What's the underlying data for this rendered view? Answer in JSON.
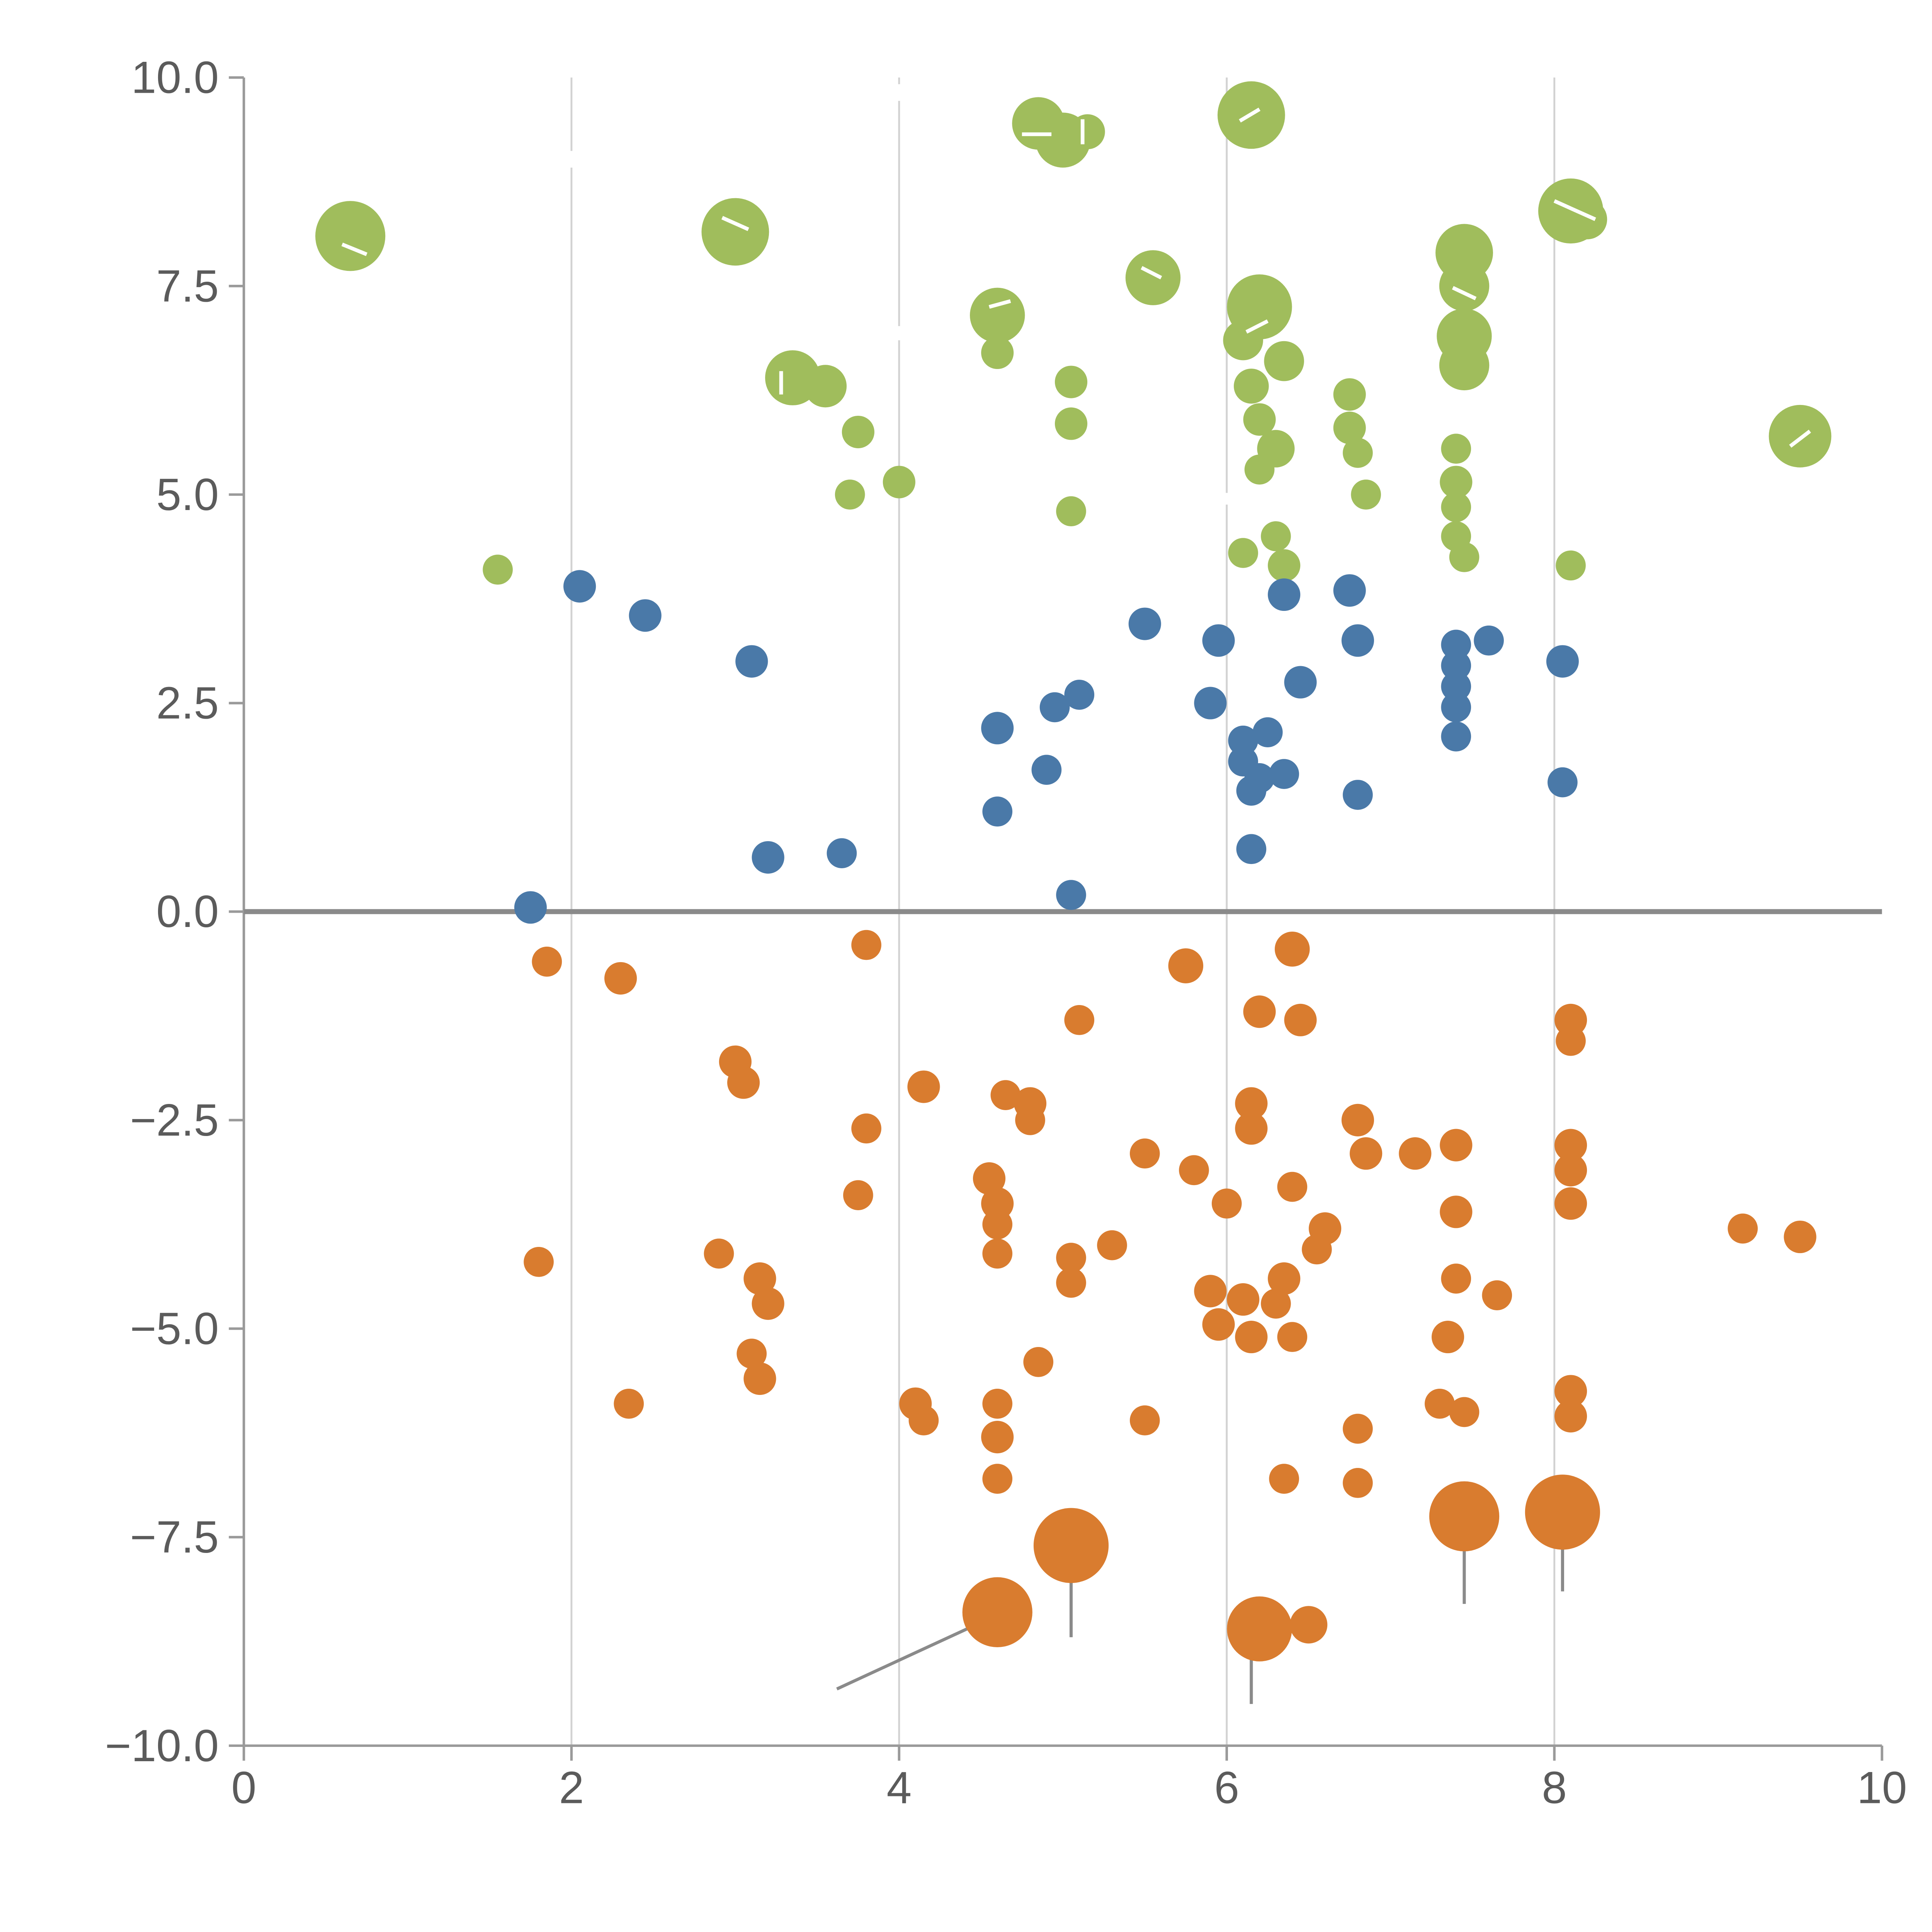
{
  "chart_data": {
    "type": "scatter",
    "title": "",
    "xlabel": "",
    "ylabel": "",
    "xlim": [
      0,
      10
    ],
    "ylim": [
      -10,
      10
    ],
    "x_ticks": [
      0,
      2,
      4,
      6,
      8,
      10
    ],
    "y_ticks": [
      10.0,
      7.5,
      5.0,
      2.5,
      0.0,
      -2.5,
      -5.0,
      -7.5,
      -10.0
    ],
    "x_tick_labels": [
      "0",
      "2",
      "4",
      "6",
      "8",
      "10"
    ],
    "y_tick_labels": [
      "10.0",
      "7.5",
      "5.0",
      "2.5",
      "0.0",
      "−2.5",
      "−5.0",
      "−7.5",
      "−10.0"
    ],
    "grid": "vertical-only",
    "grid_x_values": [
      2,
      4,
      6,
      8
    ],
    "zero_line": true,
    "legend": "none",
    "colors": {
      "green": "#a0bd5c",
      "blue": "#4a79a8",
      "orange": "#d97c2f",
      "grid": "#d2d2d2",
      "zero_line": "#8a8a8a",
      "axis": "#9a9a9a",
      "tick_label": "#5b5b5b",
      "rule_gray": "#8a8a8a",
      "rule_white": "#ffffff"
    },
    "series": [
      {
        "name": "green",
        "color": "#a0bd5c",
        "points": [
          [
            0.65,
            8.1,
            28
          ],
          [
            3.0,
            8.15,
            27
          ],
          [
            4.85,
            9.45,
            21
          ],
          [
            5.0,
            9.25,
            22
          ],
          [
            5.15,
            9.35,
            14
          ],
          [
            6.15,
            9.55,
            27
          ],
          [
            8.1,
            8.4,
            26
          ],
          [
            8.2,
            8.3,
            16
          ],
          [
            5.55,
            7.6,
            22
          ],
          [
            4.6,
            7.15,
            22
          ],
          [
            4.6,
            6.7,
            13
          ],
          [
            6.2,
            7.25,
            26
          ],
          [
            6.1,
            6.85,
            16
          ],
          [
            7.45,
            7.9,
            23
          ],
          [
            7.45,
            7.5,
            20
          ],
          [
            7.45,
            6.9,
            22
          ],
          [
            7.45,
            6.55,
            20
          ],
          [
            3.35,
            6.4,
            22
          ],
          [
            3.55,
            6.3,
            17
          ],
          [
            5.05,
            6.35,
            13
          ],
          [
            5.05,
            5.85,
            13
          ],
          [
            3.75,
            5.75,
            13
          ],
          [
            6.35,
            6.6,
            16
          ],
          [
            6.15,
            6.3,
            14
          ],
          [
            6.2,
            5.9,
            13
          ],
          [
            6.3,
            5.55,
            15
          ],
          [
            6.75,
            6.2,
            13
          ],
          [
            6.75,
            5.8,
            13
          ],
          [
            6.8,
            5.5,
            12
          ],
          [
            3.7,
            5.0,
            12
          ],
          [
            4.0,
            5.15,
            13
          ],
          [
            5.05,
            4.8,
            12
          ],
          [
            6.2,
            5.3,
            12
          ],
          [
            7.4,
            5.55,
            12
          ],
          [
            7.4,
            5.15,
            13
          ],
          [
            7.4,
            4.85,
            12
          ],
          [
            6.85,
            5.0,
            12
          ],
          [
            9.5,
            5.7,
            25
          ],
          [
            1.55,
            4.1,
            12
          ],
          [
            6.3,
            4.5,
            12
          ],
          [
            6.35,
            4.15,
            13
          ],
          [
            6.1,
            4.3,
            12
          ],
          [
            7.4,
            4.5,
            12
          ],
          [
            7.45,
            4.25,
            12
          ],
          [
            8.1,
            4.15,
            12
          ]
        ]
      },
      {
        "name": "blue",
        "color": "#4a79a8",
        "points": [
          [
            2.05,
            3.9,
            13
          ],
          [
            2.45,
            3.55,
            13
          ],
          [
            3.1,
            3.0,
            13
          ],
          [
            3.2,
            0.65,
            13
          ],
          [
            3.65,
            0.7,
            12
          ],
          [
            1.75,
            0.05,
            13
          ],
          [
            4.6,
            2.2,
            13
          ],
          [
            4.6,
            1.2,
            12
          ],
          [
            4.9,
            1.7,
            12
          ],
          [
            4.95,
            2.45,
            12
          ],
          [
            5.1,
            2.6,
            12
          ],
          [
            5.05,
            0.2,
            12
          ],
          [
            5.5,
            3.45,
            13
          ],
          [
            5.95,
            3.25,
            13
          ],
          [
            5.9,
            2.5,
            13
          ],
          [
            6.35,
            3.8,
            13
          ],
          [
            6.75,
            3.85,
            13
          ],
          [
            6.45,
            2.75,
            13
          ],
          [
            6.1,
            2.05,
            12
          ],
          [
            6.25,
            2.15,
            12
          ],
          [
            6.1,
            1.8,
            12
          ],
          [
            6.2,
            1.6,
            12
          ],
          [
            6.35,
            1.65,
            12
          ],
          [
            6.15,
            1.45,
            12
          ],
          [
            6.15,
            0.75,
            12
          ],
          [
            6.8,
            3.25,
            13
          ],
          [
            6.8,
            1.4,
            12
          ],
          [
            7.4,
            3.2,
            12
          ],
          [
            7.6,
            3.25,
            12
          ],
          [
            7.4,
            2.95,
            12
          ],
          [
            7.4,
            2.7,
            12
          ],
          [
            7.4,
            2.45,
            12
          ],
          [
            7.4,
            2.1,
            12
          ],
          [
            8.05,
            3.0,
            13
          ],
          [
            8.05,
            1.55,
            12
          ]
        ]
      },
      {
        "name": "orange",
        "color": "#d97c2f",
        "points": [
          [
            1.85,
            -0.6,
            12
          ],
          [
            2.3,
            -0.8,
            13
          ],
          [
            3.8,
            -0.4,
            12
          ],
          [
            5.75,
            -0.65,
            14
          ],
          [
            6.4,
            -0.45,
            14
          ],
          [
            5.1,
            -1.3,
            12
          ],
          [
            6.2,
            -1.2,
            13
          ],
          [
            6.45,
            -1.3,
            13
          ],
          [
            8.1,
            -1.3,
            13
          ],
          [
            8.1,
            -1.55,
            12
          ],
          [
            3.0,
            -1.8,
            13
          ],
          [
            3.05,
            -2.05,
            13
          ],
          [
            4.15,
            -2.1,
            13
          ],
          [
            4.65,
            -2.2,
            12
          ],
          [
            4.8,
            -2.3,
            13
          ],
          [
            4.8,
            -2.5,
            12
          ],
          [
            3.8,
            -2.6,
            12
          ],
          [
            6.15,
            -2.3,
            13
          ],
          [
            6.15,
            -2.6,
            13
          ],
          [
            6.8,
            -2.5,
            13
          ],
          [
            6.85,
            -2.9,
            13
          ],
          [
            7.15,
            -2.9,
            13
          ],
          [
            7.4,
            -2.8,
            13
          ],
          [
            8.1,
            -2.8,
            13
          ],
          [
            8.1,
            -3.1,
            13
          ],
          [
            5.5,
            -2.9,
            12
          ],
          [
            5.8,
            -3.1,
            12
          ],
          [
            4.55,
            -3.2,
            13
          ],
          [
            4.6,
            -3.5,
            13
          ],
          [
            4.6,
            -3.75,
            12
          ],
          [
            3.75,
            -3.4,
            12
          ],
          [
            6.0,
            -3.5,
            12
          ],
          [
            6.4,
            -3.3,
            12
          ],
          [
            6.6,
            -3.8,
            13
          ],
          [
            6.55,
            -4.05,
            12
          ],
          [
            7.4,
            -3.6,
            13
          ],
          [
            8.1,
            -3.5,
            13
          ],
          [
            9.15,
            -3.8,
            12
          ],
          [
            9.5,
            -3.9,
            13
          ],
          [
            1.8,
            -4.2,
            12
          ],
          [
            2.9,
            -4.1,
            12
          ],
          [
            4.6,
            -4.1,
            12
          ],
          [
            5.05,
            -4.15,
            12
          ],
          [
            5.05,
            -4.45,
            12
          ],
          [
            5.3,
            -4.0,
            12
          ],
          [
            3.15,
            -4.4,
            13
          ],
          [
            3.2,
            -4.7,
            13
          ],
          [
            5.9,
            -4.55,
            13
          ],
          [
            6.1,
            -4.65,
            13
          ],
          [
            6.35,
            -4.4,
            13
          ],
          [
            6.3,
            -4.7,
            12
          ],
          [
            5.95,
            -4.95,
            13
          ],
          [
            6.15,
            -5.1,
            13
          ],
          [
            6.4,
            -5.1,
            12
          ],
          [
            7.4,
            -4.4,
            12
          ],
          [
            7.65,
            -4.6,
            12
          ],
          [
            7.35,
            -5.1,
            13
          ],
          [
            3.1,
            -5.3,
            12
          ],
          [
            3.15,
            -5.6,
            13
          ],
          [
            4.85,
            -5.4,
            12
          ],
          [
            2.35,
            -5.9,
            12
          ],
          [
            4.1,
            -5.9,
            13
          ],
          [
            4.15,
            -6.1,
            12
          ],
          [
            4.6,
            -5.9,
            12
          ],
          [
            4.6,
            -6.3,
            13
          ],
          [
            5.5,
            -6.1,
            12
          ],
          [
            7.3,
            -5.9,
            12
          ],
          [
            7.45,
            -6.0,
            12
          ],
          [
            8.1,
            -5.75,
            13
          ],
          [
            8.1,
            -6.05,
            13
          ],
          [
            6.35,
            -6.8,
            12
          ],
          [
            6.8,
            -6.2,
            12
          ],
          [
            6.8,
            -6.85,
            12
          ],
          [
            4.6,
            -6.8,
            12
          ],
          [
            5.05,
            -7.6,
            30
          ],
          [
            4.6,
            -8.4,
            28
          ],
          [
            6.2,
            -8.6,
            26
          ],
          [
            6.5,
            -8.55,
            15
          ],
          [
            7.45,
            -7.25,
            28
          ],
          [
            8.05,
            -7.2,
            30
          ]
        ]
      }
    ],
    "gray_rules": [
      [
        3.62,
        -9.32,
        4.58,
        -8.45
      ],
      [
        5.05,
        -7.8,
        5.05,
        -8.7
      ],
      [
        6.15,
        -8.75,
        6.15,
        -9.5
      ],
      [
        7.45,
        -7.5,
        7.45,
        -8.3
      ],
      [
        8.05,
        -7.35,
        8.05,
        -8.15
      ]
    ],
    "white_ticks": [
      [
        0.6,
        8.0,
        0.75,
        7.88
      ],
      [
        2.92,
        8.32,
        3.08,
        8.18
      ],
      [
        4.75,
        9.32,
        4.93,
        9.32
      ],
      [
        5.12,
        9.2,
        5.12,
        9.5
      ],
      [
        6.08,
        9.48,
        6.2,
        9.62
      ],
      [
        8.0,
        8.52,
        8.25,
        8.3
      ],
      [
        9.44,
        5.58,
        9.56,
        5.76
      ],
      [
        7.38,
        7.48,
        7.52,
        7.35
      ],
      [
        4.55,
        7.25,
        4.68,
        7.32
      ],
      [
        5.48,
        7.72,
        5.6,
        7.6
      ],
      [
        3.28,
        6.2,
        3.28,
        6.48
      ],
      [
        6.12,
        6.95,
        6.25,
        7.08
      ],
      [
        4.0,
        9.92,
        4.0,
        9.72
      ],
      [
        2.0,
        9.12,
        2.0,
        8.92
      ],
      [
        4.0,
        7.02,
        4.0,
        6.85
      ],
      [
        6.0,
        5.02,
        6.0,
        4.88
      ]
    ],
    "layout": {
      "plot_left": 195,
      "plot_right": 1505,
      "plot_top": 62,
      "plot_bottom": 1396,
      "canvas": 1545,
      "tick_len": 12,
      "grid_width": 1.5,
      "zero_line_width": 4,
      "font_size": 36
    }
  }
}
